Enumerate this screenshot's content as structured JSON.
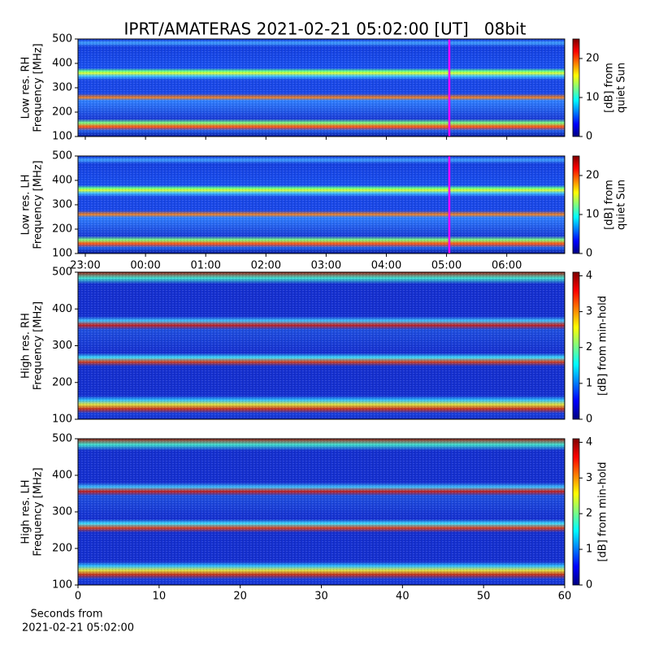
{
  "chart_data": [
    {
      "type": "heatmap",
      "title": "IPRT/AMATERAS 2021-02-21 05:02:00 [UT]   08bit",
      "ylabel": [
        "Low res. RH",
        "Frequency [MHz]"
      ],
      "ylim": [
        100,
        500
      ],
      "yticks": [
        100,
        200,
        300,
        400,
        500
      ],
      "clim": [
        0,
        25
      ],
      "cticks": [
        0,
        10,
        20
      ],
      "clabel": [
        "[dB] from",
        "quiet Sun"
      ]
    },
    {
      "type": "heatmap",
      "ylabel": [
        "Low res. LH",
        "Frequency [MHz]"
      ],
      "ylim": [
        100,
        500
      ],
      "yticks": [
        100,
        200,
        300,
        400,
        500
      ],
      "xticks": [
        "23:00",
        "00:00",
        "01:00",
        "02:00",
        "03:00",
        "04:00",
        "05:00",
        "06:00"
      ],
      "clim": [
        0,
        25
      ],
      "cticks": [
        0,
        10,
        20
      ],
      "clabel": [
        "[dB] from",
        "quiet Sun"
      ]
    },
    {
      "type": "heatmap",
      "ylabel": [
        "High res. RH",
        "Frequency [MHz]"
      ],
      "ylim": [
        100,
        500
      ],
      "yticks": [
        100,
        200,
        300,
        400,
        500
      ],
      "clim": [
        0,
        4.1
      ],
      "cticks": [
        0,
        1,
        2,
        3,
        4
      ],
      "clabel": [
        "[dB] from min-hold"
      ]
    },
    {
      "type": "heatmap",
      "ylabel": [
        "High res. LH",
        "Frequency [MHz]"
      ],
      "ylim": [
        100,
        500
      ],
      "yticks": [
        100,
        200,
        300,
        400,
        500
      ],
      "xlim": [
        0,
        60
      ],
      "xticks": [
        0,
        10,
        20,
        30,
        40,
        50,
        60
      ],
      "xlabel": [
        "Seconds from",
        "2021-02-21 05:02:00"
      ],
      "clim": [
        0,
        4.1
      ],
      "cticks": [
        0,
        1,
        2,
        3,
        4
      ],
      "clabel": [
        "[dB] from min-hold"
      ]
    }
  ]
}
